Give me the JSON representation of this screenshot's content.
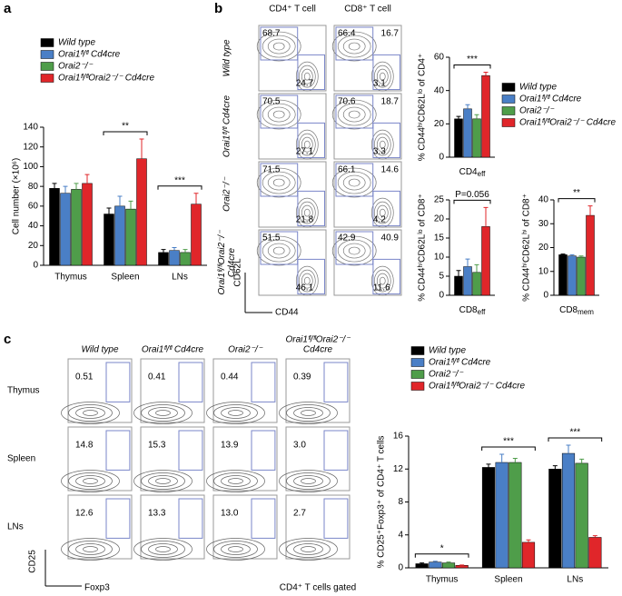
{
  "panel_labels": [
    "a",
    "b",
    "c"
  ],
  "flow_b": {
    "columns": [
      "CD4⁺ T cell",
      "CD8⁺ T cell"
    ],
    "rows": [
      [
        "Wild type"
      ],
      [
        "Orai1ᶠˡ/ᶠˡ Cd4cre"
      ],
      [
        "Orai2⁻/⁻"
      ],
      [
        "Orai1ᶠˡ/ᶠˡOrai2⁻/⁻",
        "Cd4cre"
      ]
    ],
    "values": [
      [
        [
          "68.7",
          "24.7"
        ],
        [
          "66.4",
          "16.7",
          "3.1"
        ]
      ],
      [
        [
          "70.5",
          "27.1"
        ],
        [
          "70.6",
          "18.7",
          "3.3"
        ]
      ],
      [
        [
          "71.5",
          "21.8"
        ],
        [
          "66.1",
          "14.6",
          "4.2"
        ]
      ],
      [
        [
          "51.5",
          "46.1"
        ],
        [
          "42.9",
          "40.9",
          "11.6"
        ]
      ]
    ],
    "y_axis": "CD62L",
    "x_axis": "CD44"
  },
  "flow_c": {
    "columns": [
      [
        "Wild type"
      ],
      [
        "Orai1ᶠˡ/ᶠˡ Cd4cre"
      ],
      [
        "Orai2⁻/⁻"
      ],
      [
        "Orai1ᶠˡ/ᶠˡOrai2⁻/⁻",
        "Cd4cre"
      ]
    ],
    "rows": [
      "Thymus",
      "Spleen",
      "LNs"
    ],
    "values": [
      [
        "0.51",
        "0.41",
        "0.44",
        "0.39"
      ],
      [
        "14.8",
        "15.3",
        "13.9",
        "3.0"
      ],
      [
        "12.6",
        "13.3",
        "13.0",
        "2.7"
      ]
    ],
    "y_axis": "CD25",
    "x_axis": "Foxp3",
    "footer": "CD4⁺ T cells gated"
  },
  "chart_data": [
    {
      "type": "bar",
      "ylabel": "Cell number (×10⁶)",
      "categories": [
        "Thymus",
        "Spleen",
        "LNs"
      ],
      "ylim": [
        0,
        140
      ],
      "yticks": [
        0,
        20,
        40,
        60,
        80,
        100,
        120,
        140
      ],
      "significance": [
        null,
        "**",
        "***"
      ],
      "series": [
        {
          "name": "Wild type",
          "color": "#000000",
          "values": [
            78,
            52,
            13
          ],
          "errors": [
            5,
            6,
            3
          ]
        },
        {
          "name": "Orai1ᶠˡ/ᶠˡ Cd4cre",
          "color": "#4a7fc6",
          "values": [
            73,
            60,
            15
          ],
          "errors": [
            7,
            10,
            3
          ]
        },
        {
          "name": "Orai2⁻/⁻",
          "color": "#4f9d4a",
          "values": [
            77,
            57,
            13
          ],
          "errors": [
            6,
            8,
            3
          ]
        },
        {
          "name": "Orai1ᶠˡ/ᶠˡOrai2⁻/⁻ Cd4cre",
          "color": "#e0262a",
          "values": [
            83,
            108,
            62
          ],
          "errors": [
            9,
            20,
            11
          ]
        }
      ]
    },
    {
      "type": "bar",
      "ylabel": "% CD44ʰⁱCD62Lˡᵒ of CD4⁺",
      "xlabel": {
        "text": "CD4",
        "sub": "eff"
      },
      "categories": [
        null
      ],
      "ylim": [
        0,
        60
      ],
      "yticks": [
        0,
        20,
        40,
        60
      ],
      "significance": [
        "***"
      ],
      "series": [
        {
          "name": "Wild type",
          "color": "#000000",
          "values": [
            23
          ],
          "errors": [
            1.5
          ]
        },
        {
          "name": "Orai1ᶠˡ/ᶠˡ Cd4cre",
          "color": "#4a7fc6",
          "values": [
            29
          ],
          "errors": [
            2.5
          ]
        },
        {
          "name": "Orai2⁻/⁻",
          "color": "#4f9d4a",
          "values": [
            23
          ],
          "errors": [
            2.5
          ]
        },
        {
          "name": "Orai1ᶠˡ/ᶠˡOrai2⁻/⁻ Cd4cre",
          "color": "#e0262a",
          "values": [
            49
          ],
          "errors": [
            2
          ]
        }
      ]
    },
    {
      "type": "bar",
      "ylabel": "% CD44ʰⁱCD62Lˡᵒ of CD8⁺",
      "xlabel": {
        "text": "CD8",
        "sub": "eff"
      },
      "categories": [
        null
      ],
      "ylim": [
        0,
        25
      ],
      "yticks": [
        0,
        5,
        10,
        15,
        20,
        25
      ],
      "significance": [
        "P=0.056"
      ],
      "series": [
        {
          "color": "#000000",
          "values": [
            5
          ],
          "errors": [
            1.5
          ]
        },
        {
          "color": "#4a7fc6",
          "values": [
            7.5
          ],
          "errors": [
            2
          ]
        },
        {
          "color": "#4f9d4a",
          "values": [
            6
          ],
          "errors": [
            2
          ]
        },
        {
          "color": "#e0262a",
          "values": [
            18
          ],
          "errors": [
            5
          ]
        }
      ]
    },
    {
      "type": "bar",
      "ylabel": "% CD44ʰⁱCD62Lʰⁱ of CD8⁺",
      "xlabel": {
        "text": "CD8",
        "sub": "mem"
      },
      "categories": [
        null
      ],
      "ylim": [
        0,
        40
      ],
      "yticks": [
        0,
        10,
        20,
        30,
        40
      ],
      "significance": [
        "**"
      ],
      "series": [
        {
          "color": "#000000",
          "values": [
            17
          ],
          "errors": [
            0.3
          ]
        },
        {
          "color": "#4a7fc6",
          "values": [
            16.5
          ],
          "errors": [
            0.5
          ]
        },
        {
          "color": "#4f9d4a",
          "values": [
            16
          ],
          "errors": [
            0.5
          ]
        },
        {
          "color": "#e0262a",
          "values": [
            33.5
          ],
          "errors": [
            4
          ]
        }
      ]
    },
    {
      "type": "bar",
      "ylabel": "% CD25⁺Foxp3⁺ of CD4⁺ T cells",
      "categories": [
        "Thymus",
        "Spleen",
        "LNs"
      ],
      "ylim": [
        0,
        16
      ],
      "yticks": [
        0,
        4,
        8,
        12,
        16
      ],
      "significance": [
        "*",
        "***",
        "***"
      ],
      "series": [
        {
          "name": "Wild type",
          "color": "#000000",
          "values": [
            0.5,
            12.2,
            12
          ],
          "errors": [
            0.1,
            0.4,
            0.4
          ]
        },
        {
          "name": "Orai1ᶠˡ/ᶠˡ Cd4cre",
          "color": "#4a7fc6",
          "values": [
            0.7,
            12.8,
            13.9
          ],
          "errors": [
            0.1,
            1,
            1
          ]
        },
        {
          "name": "Orai2⁻/⁻",
          "color": "#4f9d4a",
          "values": [
            0.6,
            12.8,
            12.7
          ],
          "errors": [
            0.1,
            0.5,
            0.5
          ]
        },
        {
          "name": "Orai1ᶠˡ/ᶠˡOrai2⁻/⁻ Cd4cre",
          "color": "#e0262a",
          "values": [
            0.3,
            3.1,
            3.7
          ],
          "errors": [
            0.05,
            0.3,
            0.2
          ]
        }
      ]
    }
  ]
}
